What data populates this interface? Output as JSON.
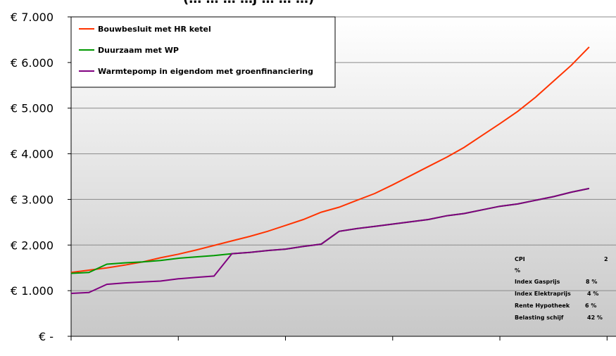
{
  "chart_data": {
    "type": "line",
    "title": "(… … … …j … … …)",
    "ylim": [
      0,
      7000
    ],
    "ytick_labels": [
      "€ -",
      "€ 1.000",
      "€ 2.000",
      "€ 3.000",
      "€ 4.000",
      "€ 5.000",
      "€ 6.000",
      "€ 7.000"
    ],
    "x": [
      1,
      2,
      3,
      4,
      5,
      6,
      7,
      8,
      9,
      10,
      11,
      12,
      13,
      14,
      15,
      16,
      17,
      18,
      19,
      20,
      21,
      22,
      23,
      24,
      25,
      26,
      27,
      28,
      29,
      30
    ],
    "xlim": [
      1,
      31.5
    ],
    "x_tick_positions": [
      1,
      7,
      13,
      19,
      25,
      31
    ],
    "grid": true,
    "legend_position": "top-left",
    "series": [
      {
        "name": "Bouwbesluit met HR ketel",
        "color": "#ff3300",
        "values": [
          1400,
          1450,
          1500,
          1560,
          1630,
          1720,
          1800,
          1890,
          1990,
          2090,
          2190,
          2300,
          2430,
          2560,
          2720,
          2830,
          2980,
          3130,
          3320,
          3520,
          3720,
          3920,
          4140,
          4400,
          4660,
          4930,
          5240,
          5590,
          5940,
          6340
        ]
      },
      {
        "name": "Duurzaam met WP",
        "color": "#009900",
        "values": [
          1380,
          1400,
          1580,
          1610,
          1630,
          1660,
          1710,
          1740,
          1770,
          1810,
          1840,
          1880,
          1910,
          1970,
          2020,
          2300,
          2360,
          2410,
          2460,
          2510,
          2560,
          2640,
          2690,
          2770,
          2850,
          2900,
          2980,
          3060,
          3160,
          3240
        ]
      },
      {
        "name": "Warmtepomp in eigendom met groenfinanciering",
        "color": "#800080",
        "values": [
          940,
          960,
          1140,
          1170,
          1190,
          1210,
          1260,
          1290,
          1320,
          1810,
          1840,
          1880,
          1910,
          1970,
          2020,
          2300,
          2360,
          2410,
          2460,
          2510,
          2560,
          2640,
          2690,
          2770,
          2850,
          2900,
          2980,
          3060,
          3160,
          3240
        ]
      }
    ],
    "annotations": [
      {
        "label": "CPI",
        "value": "2",
        "unit": "%"
      },
      {
        "label": "Index Gasprijs",
        "value": "8 %"
      },
      {
        "label": "Index Elektraprijs",
        "value": "4 %"
      },
      {
        "label": "Rente Hypotheek",
        "value": "6 %"
      },
      {
        "label": "Belasting schijf",
        "value": "42 %"
      }
    ]
  }
}
